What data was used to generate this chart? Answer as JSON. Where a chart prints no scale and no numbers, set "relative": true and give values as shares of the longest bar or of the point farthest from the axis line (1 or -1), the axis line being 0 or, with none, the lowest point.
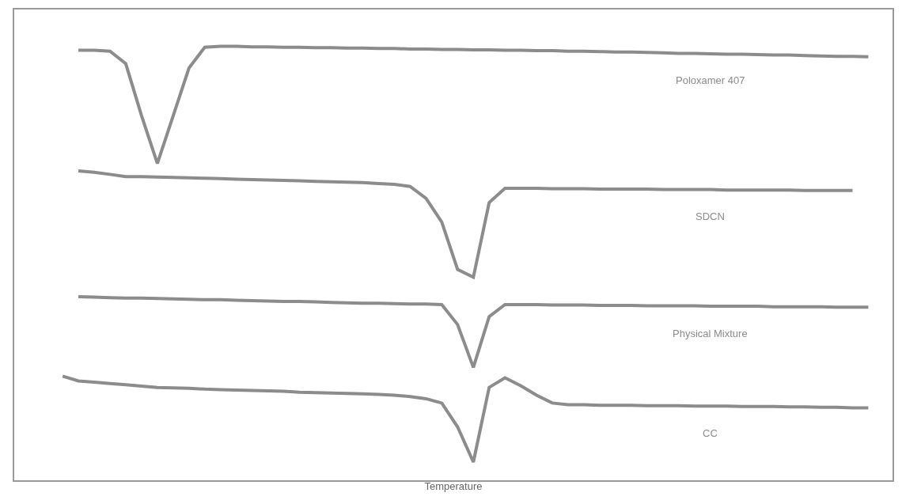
{
  "chart_data": {
    "type": "line",
    "relative": true,
    "xlabel": "Temperature",
    "tick_labels": false,
    "legend": false,
    "marker": "none",
    "line_style": "solid",
    "categories": [
      null,
      null,
      null,
      null,
      null,
      null,
      null,
      null,
      null,
      null,
      null,
      null,
      null,
      null,
      null,
      null,
      null,
      null,
      null,
      null,
      null,
      null,
      null,
      null,
      null,
      null,
      null,
      null,
      null,
      null,
      null,
      null,
      null,
      null,
      null,
      null,
      null,
      null,
      null,
      null,
      null,
      null,
      null,
      null,
      null,
      null,
      null,
      null,
      null,
      null,
      null,
      null
    ],
    "series": [
      {
        "name": "Poloxamer 407",
        "color": "#8c8c8c",
        "values": [
          null,
          0.991,
          0.991,
          0.989,
          0.96,
          0.84,
          0.73,
          0.84,
          0.95,
          0.998,
          1.0,
          1.0,
          0.999,
          0.999,
          0.998,
          0.998,
          0.997,
          0.997,
          0.996,
          0.996,
          0.995,
          0.995,
          0.994,
          0.994,
          0.993,
          0.993,
          0.992,
          0.992,
          0.991,
          0.991,
          0.99,
          0.99,
          0.989,
          0.989,
          0.988,
          0.987,
          0.987,
          0.986,
          0.985,
          0.984,
          0.984,
          0.983,
          0.982,
          0.982,
          0.981,
          0.98,
          0.98,
          0.979,
          0.978,
          0.977,
          0.977,
          0.976
        ]
      },
      {
        "name": "SDCN",
        "color": "#8c8c8c",
        "values": [
          null,
          0.713,
          0.71,
          0.705,
          0.7,
          0.7,
          0.699,
          0.698,
          0.697,
          0.696,
          0.695,
          0.694,
          0.693,
          0.692,
          0.691,
          0.69,
          0.689,
          0.688,
          0.687,
          0.686,
          0.684,
          0.682,
          0.677,
          0.65,
          0.595,
          0.486,
          0.468,
          0.64,
          0.673,
          0.673,
          0.673,
          0.672,
          0.672,
          0.672,
          0.671,
          0.671,
          0.671,
          0.671,
          0.67,
          0.67,
          0.67,
          0.67,
          0.669,
          0.669,
          0.669,
          0.669,
          0.669,
          0.668,
          0.668,
          0.668,
          0.668,
          null
        ]
      },
      {
        "name": "Physical Mixture",
        "color": "#8c8c8c",
        "values": [
          null,
          0.423,
          0.422,
          0.421,
          0.42,
          0.42,
          0.419,
          0.418,
          0.417,
          0.416,
          0.416,
          0.415,
          0.414,
          0.413,
          0.412,
          0.412,
          0.411,
          0.41,
          0.409,
          0.408,
          0.408,
          0.407,
          0.406,
          0.406,
          0.405,
          0.359,
          0.26,
          0.377,
          0.405,
          0.405,
          0.405,
          0.404,
          0.404,
          0.404,
          0.403,
          0.403,
          0.403,
          0.402,
          0.402,
          0.402,
          0.402,
          0.401,
          0.401,
          0.401,
          0.401,
          0.4,
          0.4,
          0.4,
          0.4,
          0.399,
          0.399,
          0.399
        ]
      },
      {
        "name": "CC",
        "color": "#8c8c8c",
        "values": [
          0.24,
          0.229,
          0.226,
          0.223,
          0.22,
          0.217,
          0.214,
          0.213,
          0.212,
          0.21,
          0.209,
          0.208,
          0.207,
          0.206,
          0.205,
          0.203,
          0.202,
          0.201,
          0.2,
          0.199,
          0.198,
          0.196,
          0.193,
          0.188,
          0.178,
          0.123,
          0.042,
          0.214,
          0.236,
          0.218,
          0.196,
          0.178,
          0.174,
          0.174,
          0.173,
          0.173,
          0.173,
          0.172,
          0.172,
          0.172,
          0.171,
          0.171,
          0.171,
          0.17,
          0.17,
          0.17,
          0.169,
          0.169,
          0.168,
          0.168,
          0.167,
          0.167
        ]
      }
    ]
  }
}
